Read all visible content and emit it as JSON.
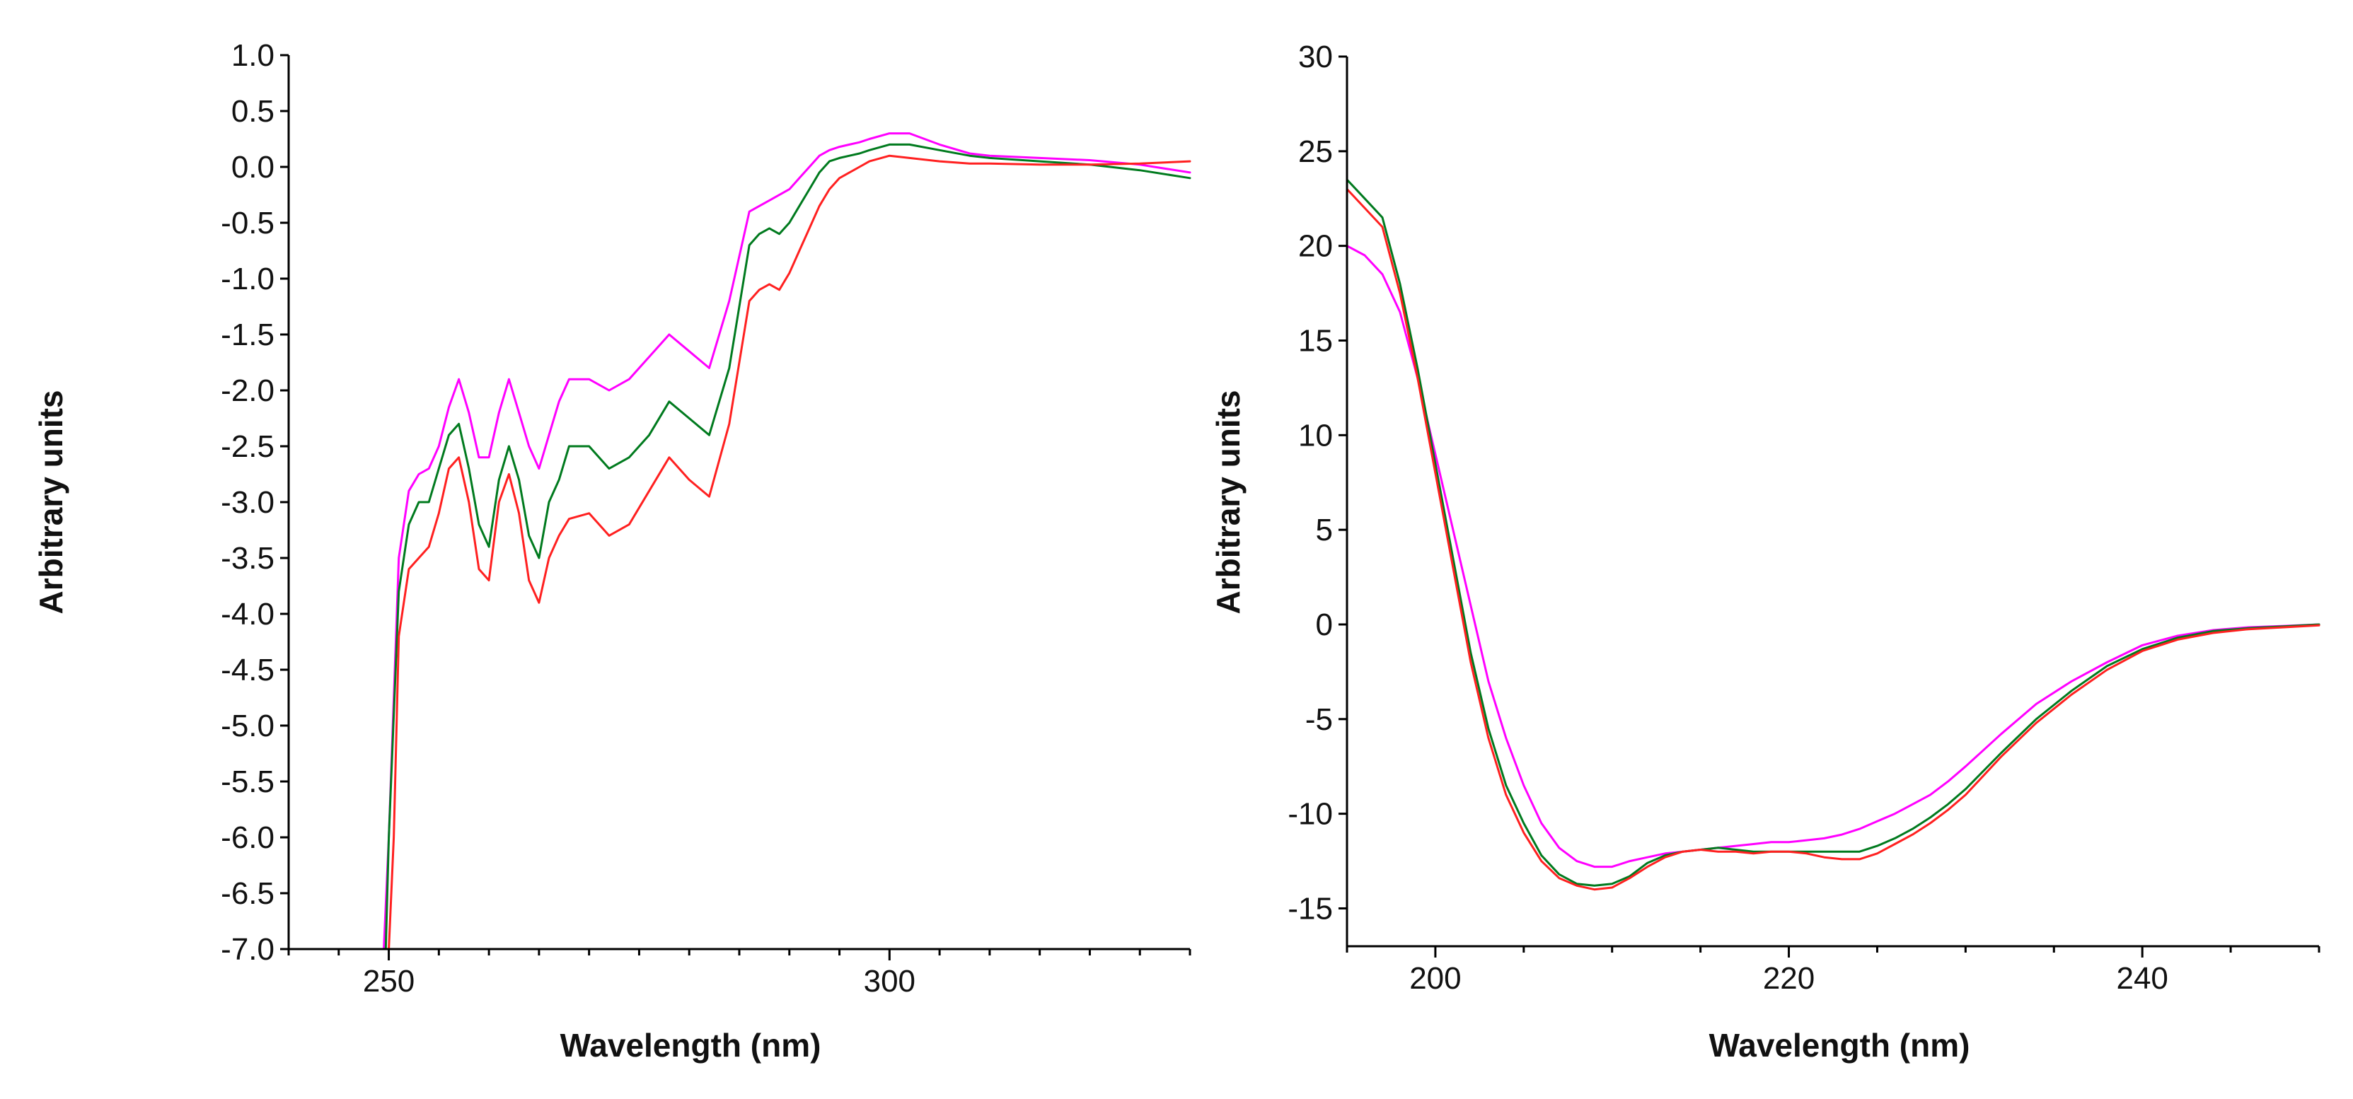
{
  "chart_data": [
    {
      "type": "line",
      "title": "",
      "xlabel": "Wavelength (nm)",
      "ylabel": "Arbitrary units",
      "xlim": [
        240,
        330
      ],
      "ylim": [
        -7.0,
        1.0
      ],
      "xticks": [
        250,
        300
      ],
      "xtick_labels": [
        "250",
        "300"
      ],
      "yticks": [
        1.0,
        0.5,
        0.0,
        -0.5,
        -1.0,
        -1.5,
        -2.0,
        -2.5,
        -3.0,
        -3.5,
        -4.0,
        -4.5,
        -5.0,
        -5.5,
        -6.0,
        -6.5,
        -7.0
      ],
      "ytick_labels": [
        "1.0",
        "0.5",
        "0.0",
        "-0.5",
        "-1.0",
        "-1.5",
        "-2.0",
        "-2.5",
        "-3.0",
        "-3.5",
        "-4.0",
        "-4.5",
        "-5.0",
        "-5.5",
        "-6.0",
        "-6.5",
        "-7.0"
      ],
      "grid": false,
      "series": [
        {
          "name": "magenta",
          "color": "#ff00ff",
          "x": [
            249.5,
            250,
            251,
            252,
            253,
            254,
            255,
            256,
            257,
            258,
            259,
            260,
            261,
            262,
            263,
            264,
            265,
            266,
            267,
            268,
            270,
            272,
            274,
            276,
            278,
            280,
            282,
            284,
            286,
            287,
            288,
            290,
            291,
            292,
            293,
            294,
            295,
            296,
            297,
            298,
            300,
            302,
            305,
            308,
            310,
            315,
            320,
            325,
            330
          ],
          "y": [
            -7.0,
            -6.0,
            -3.5,
            -2.9,
            -2.75,
            -2.7,
            -2.5,
            -2.15,
            -1.9,
            -2.2,
            -2.6,
            -2.6,
            -2.2,
            -1.9,
            -2.2,
            -2.5,
            -2.7,
            -2.4,
            -2.1,
            -1.9,
            -1.9,
            -2.0,
            -1.9,
            -1.7,
            -1.5,
            -1.65,
            -1.8,
            -1.2,
            -0.4,
            -0.35,
            -0.3,
            -0.2,
            -0.1,
            0.0,
            0.1,
            0.15,
            0.18,
            0.2,
            0.22,
            0.25,
            0.3,
            0.3,
            0.2,
            0.12,
            0.1,
            0.08,
            0.06,
            0.02,
            -0.05
          ]
        },
        {
          "name": "green",
          "color": "#007a1e",
          "x": [
            249.7,
            250,
            251,
            252,
            253,
            254,
            255,
            256,
            257,
            258,
            259,
            260,
            261,
            262,
            263,
            264,
            265,
            266,
            267,
            268,
            270,
            272,
            274,
            276,
            278,
            280,
            282,
            284,
            286,
            287,
            288,
            289,
            290,
            291,
            292,
            293,
            294,
            295,
            296,
            297,
            298,
            300,
            302,
            305,
            308,
            310,
            315,
            320,
            325,
            330
          ],
          "y": [
            -7.0,
            -6.0,
            -3.8,
            -3.2,
            -3.0,
            -3.0,
            -2.7,
            -2.4,
            -2.3,
            -2.7,
            -3.2,
            -3.4,
            -2.8,
            -2.5,
            -2.8,
            -3.3,
            -3.5,
            -3.0,
            -2.8,
            -2.5,
            -2.5,
            -2.7,
            -2.6,
            -2.4,
            -2.1,
            -2.25,
            -2.4,
            -1.8,
            -0.7,
            -0.6,
            -0.55,
            -0.6,
            -0.5,
            -0.35,
            -0.2,
            -0.05,
            0.05,
            0.08,
            0.1,
            0.12,
            0.15,
            0.2,
            0.2,
            0.15,
            0.1,
            0.08,
            0.05,
            0.02,
            -0.03,
            -0.1
          ]
        },
        {
          "name": "red",
          "color": "#ff2020",
          "x": [
            250,
            250.5,
            251,
            252,
            253,
            254,
            255,
            256,
            257,
            258,
            259,
            260,
            261,
            262,
            263,
            264,
            265,
            266,
            267,
            268,
            270,
            272,
            274,
            276,
            278,
            280,
            282,
            284,
            286,
            287,
            288,
            289,
            290,
            291,
            292,
            293,
            294,
            295,
            296,
            297,
            298,
            300,
            302,
            305,
            308,
            310,
            315,
            320,
            325,
            330
          ],
          "y": [
            -7.0,
            -6.0,
            -4.2,
            -3.6,
            -3.5,
            -3.4,
            -3.1,
            -2.7,
            -2.6,
            -3.0,
            -3.6,
            -3.7,
            -3.0,
            -2.75,
            -3.1,
            -3.7,
            -3.9,
            -3.5,
            -3.3,
            -3.15,
            -3.1,
            -3.3,
            -3.2,
            -2.9,
            -2.6,
            -2.8,
            -2.95,
            -2.3,
            -1.2,
            -1.1,
            -1.05,
            -1.1,
            -0.95,
            -0.75,
            -0.55,
            -0.35,
            -0.2,
            -0.1,
            -0.05,
            0.0,
            0.05,
            0.1,
            0.08,
            0.05,
            0.03,
            0.03,
            0.02,
            0.02,
            0.03,
            0.05
          ]
        }
      ]
    },
    {
      "type": "line",
      "title": "",
      "xlabel": "Wavelength (nm)",
      "ylabel": "Arbitrary units",
      "xlim": [
        195,
        250
      ],
      "ylim": [
        -17,
        30
      ],
      "xticks": [
        200,
        220,
        240
      ],
      "xtick_labels": [
        "200",
        "220",
        "240"
      ],
      "yticks": [
        30,
        25,
        20,
        15,
        10,
        5,
        0,
        -5,
        -10,
        -15
      ],
      "ytick_labels": [
        "30",
        "25",
        "20",
        "15",
        "10",
        "5",
        "0",
        "-5",
        "-10",
        "-15"
      ],
      "grid": false,
      "series": [
        {
          "name": "magenta",
          "color": "#ff00ff",
          "x": [
            195,
            196,
            197,
            198,
            199,
            200,
            201,
            202,
            203,
            204,
            205,
            206,
            207,
            208,
            209,
            210,
            211,
            212,
            213,
            214,
            215,
            216,
            217,
            218,
            219,
            220,
            221,
            222,
            223,
            224,
            225,
            226,
            227,
            228,
            229,
            230,
            232,
            234,
            236,
            238,
            240,
            242,
            244,
            246,
            248,
            250
          ],
          "y": [
            20,
            19.5,
            18.5,
            16.5,
            13,
            9,
            5,
            1,
            -3,
            -6,
            -8.5,
            -10.5,
            -11.8,
            -12.5,
            -12.8,
            -12.8,
            -12.5,
            -12.3,
            -12.1,
            -12.0,
            -11.9,
            -11.8,
            -11.7,
            -11.6,
            -11.5,
            -11.5,
            -11.4,
            -11.3,
            -11.1,
            -10.8,
            -10.4,
            -10.0,
            -9.5,
            -9.0,
            -8.3,
            -7.5,
            -5.8,
            -4.2,
            -3.0,
            -2.0,
            -1.1,
            -0.6,
            -0.3,
            -0.15,
            -0.08,
            0.0
          ]
        },
        {
          "name": "green",
          "color": "#007a1e",
          "x": [
            195,
            196,
            197,
            198,
            199,
            200,
            201,
            202,
            203,
            204,
            205,
            206,
            207,
            208,
            209,
            210,
            211,
            212,
            213,
            214,
            215,
            216,
            217,
            218,
            219,
            220,
            221,
            222,
            223,
            224,
            225,
            226,
            227,
            228,
            229,
            230,
            232,
            234,
            236,
            238,
            240,
            242,
            244,
            246,
            248,
            250
          ],
          "y": [
            23.5,
            22.5,
            21.5,
            18,
            13.5,
            8.5,
            3.5,
            -1.5,
            -5.5,
            -8.5,
            -10.5,
            -12.2,
            -13.2,
            -13.7,
            -13.8,
            -13.7,
            -13.3,
            -12.6,
            -12.2,
            -12.0,
            -11.9,
            -11.8,
            -11.9,
            -12.0,
            -12.0,
            -12.0,
            -12.0,
            -12.0,
            -12.0,
            -12.0,
            -11.7,
            -11.3,
            -10.8,
            -10.2,
            -9.5,
            -8.7,
            -6.8,
            -5.0,
            -3.5,
            -2.2,
            -1.3,
            -0.7,
            -0.35,
            -0.2,
            -0.1,
            0.0
          ]
        },
        {
          "name": "red",
          "color": "#ff2020",
          "x": [
            195,
            196,
            197,
            198,
            199,
            200,
            201,
            202,
            203,
            204,
            205,
            206,
            207,
            208,
            209,
            210,
            211,
            212,
            213,
            214,
            215,
            216,
            217,
            218,
            219,
            220,
            221,
            222,
            223,
            224,
            225,
            226,
            227,
            228,
            229,
            230,
            232,
            234,
            236,
            238,
            240,
            242,
            244,
            246,
            248,
            250
          ],
          "y": [
            23.0,
            22.0,
            21.0,
            17.5,
            13.0,
            8.0,
            3.0,
            -2.0,
            -6.0,
            -9.0,
            -11.0,
            -12.5,
            -13.4,
            -13.8,
            -14.0,
            -13.9,
            -13.4,
            -12.8,
            -12.3,
            -12.0,
            -11.9,
            -12.0,
            -12.0,
            -12.1,
            -12.0,
            -12.0,
            -12.1,
            -12.3,
            -12.4,
            -12.4,
            -12.1,
            -11.6,
            -11.1,
            -10.5,
            -9.8,
            -9.0,
            -7.0,
            -5.2,
            -3.7,
            -2.4,
            -1.4,
            -0.8,
            -0.45,
            -0.25,
            -0.15,
            -0.05
          ]
        }
      ]
    }
  ]
}
